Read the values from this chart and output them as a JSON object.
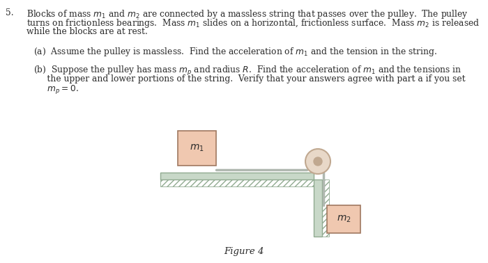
{
  "fig_width": 7.0,
  "fig_height": 3.78,
  "dpi": 100,
  "bg_color": "#ffffff",
  "text_color": "#2a2a2a",
  "block_color": "#f0c8b0",
  "block_edge_color": "#a07860",
  "table_color": "#c8d8c8",
  "table_edge_color": "#90aa90",
  "string_color": "#b0b8b0",
  "pulley_outer_color": "#e8d8c8",
  "pulley_inner_color": "#c0a890",
  "bracket_color": "#d8c0a8",
  "wall_color": "#c8d8c8",
  "wall_edge_color": "#90aa90",
  "figure_caption": "Figure 4",
  "fs_main": 8.8,
  "fs_fig": 9.5
}
